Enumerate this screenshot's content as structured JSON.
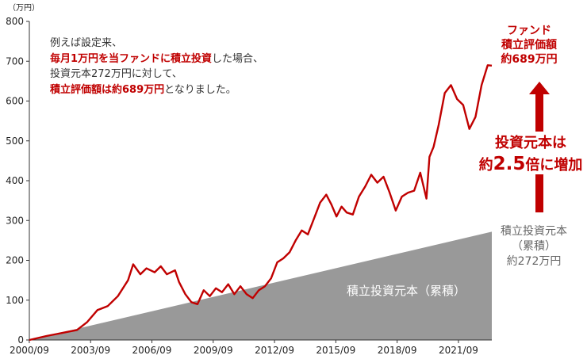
{
  "chart_data": {
    "type": "line",
    "unit": "（万円）",
    "ylim": [
      0,
      800
    ],
    "yticks": [
      "0",
      "100",
      "200",
      "300",
      "400",
      "500",
      "600",
      "700",
      "800"
    ],
    "xticks": [
      "2000/09",
      "2003/09",
      "2006/09",
      "2009/09",
      "2012/09",
      "2015/09",
      "2018/09",
      "2021/09"
    ],
    "series": [
      {
        "name": "積立評価額",
        "color": "#c00000",
        "x": [
          2000.67,
          2001.5,
          2002.0,
          2002.5,
          2003.0,
          2003.5,
          2004.0,
          2004.5,
          2005.0,
          2005.5,
          2005.75,
          2006.1,
          2006.4,
          2006.8,
          2007.1,
          2007.4,
          2007.8,
          2008.0,
          2008.3,
          2008.6,
          2008.9,
          2009.2,
          2009.5,
          2009.8,
          2010.1,
          2010.4,
          2010.7,
          2011.0,
          2011.3,
          2011.6,
          2011.9,
          2012.2,
          2012.5,
          2012.8,
          2013.1,
          2013.4,
          2013.7,
          2014.0,
          2014.3,
          2014.6,
          2014.9,
          2015.2,
          2015.45,
          2015.7,
          2015.95,
          2016.2,
          2016.5,
          2016.8,
          2017.1,
          2017.4,
          2017.7,
          2018.0,
          2018.3,
          2018.6,
          2018.9,
          2019.2,
          2019.5,
          2019.8,
          2020.1,
          2020.25,
          2020.45,
          2020.7,
          2021.0,
          2021.3,
          2021.6,
          2021.9,
          2022.2,
          2022.5,
          2022.8,
          2023.1,
          2023.3
        ],
        "values": [
          0,
          10,
          15,
          20,
          25,
          45,
          75,
          85,
          110,
          150,
          190,
          165,
          180,
          170,
          185,
          165,
          175,
          145,
          115,
          95,
          90,
          125,
          110,
          130,
          120,
          140,
          115,
          135,
          115,
          105,
          125,
          135,
          155,
          195,
          205,
          220,
          250,
          275,
          265,
          305,
          345,
          365,
          340,
          310,
          335,
          320,
          315,
          360,
          385,
          415,
          395,
          410,
          370,
          325,
          360,
          370,
          375,
          420,
          355,
          460,
          485,
          540,
          620,
          640,
          605,
          590,
          530,
          560,
          640,
          690,
          689
        ]
      }
    ],
    "area": {
      "name": "積立投資元本（累積）",
      "x_start": 2000.67,
      "x_end": 2023.3,
      "start_value": 0,
      "end_value": 272,
      "color": "#999999"
    }
  },
  "note": {
    "line1": "例えば設定来、",
    "line2_highlight": "毎月1万円を当ファンドに積立投資",
    "line2_rest": "した場合、",
    "line3": "投資元本272万円に対して、",
    "line4_highlight": "積立評価額は約689万円",
    "line4_rest": "となりました。"
  },
  "area_label": "積立投資元本（累積）",
  "fund_label": {
    "line1": "ファンド",
    "line2": "積立評価額",
    "line3": "約689万円"
  },
  "growth_label": {
    "line1": "投資元本は",
    "prefix": "約",
    "big": "2.5",
    "suffix": "倍に増加"
  },
  "principal_label": {
    "line1": "積立投資元本",
    "line2": "（累積）",
    "line3": "約272万円"
  },
  "colors": {
    "accent": "#c00000",
    "principal_area": "#999999"
  }
}
